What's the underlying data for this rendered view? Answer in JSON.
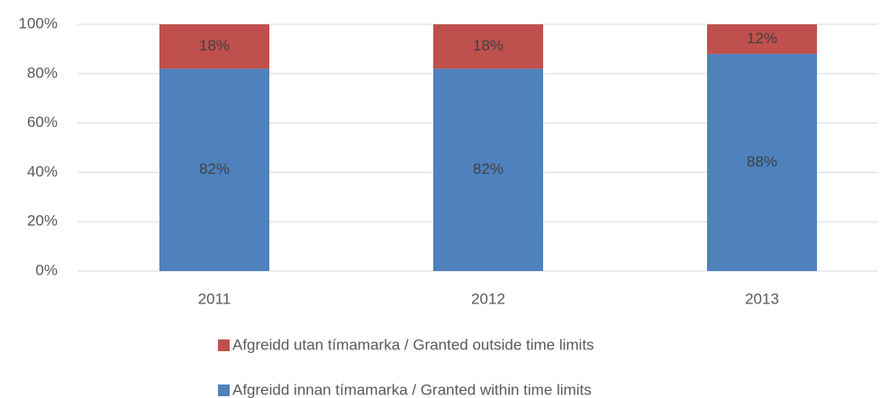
{
  "chart_data": {
    "type": "stacked_bar",
    "categories": [
      "2011",
      "2012",
      "2013"
    ],
    "series": [
      {
        "name": "Afgreidd innan tímamarka / Granted within time limits",
        "color": "#4f81bd",
        "values": [
          82,
          82,
          88
        ],
        "value_labels": [
          "82%",
          "82%",
          "88%"
        ]
      },
      {
        "name": "Afgreidd utan tímamarka / Granted outside time limits",
        "color": "#c0504d",
        "values": [
          18,
          18,
          12
        ],
        "value_labels": [
          "18%",
          "18%",
          "12%"
        ]
      }
    ],
    "ylim": [
      0,
      100
    ],
    "yticks": [
      {
        "value": 0,
        "label": "0%"
      },
      {
        "value": 20,
        "label": "20%"
      },
      {
        "value": 40,
        "label": "40%"
      },
      {
        "value": 60,
        "label": "60%"
      },
      {
        "value": 80,
        "label": "80%"
      },
      {
        "value": 100,
        "label": "100%"
      }
    ],
    "grid": true,
    "legend": "bottom"
  }
}
